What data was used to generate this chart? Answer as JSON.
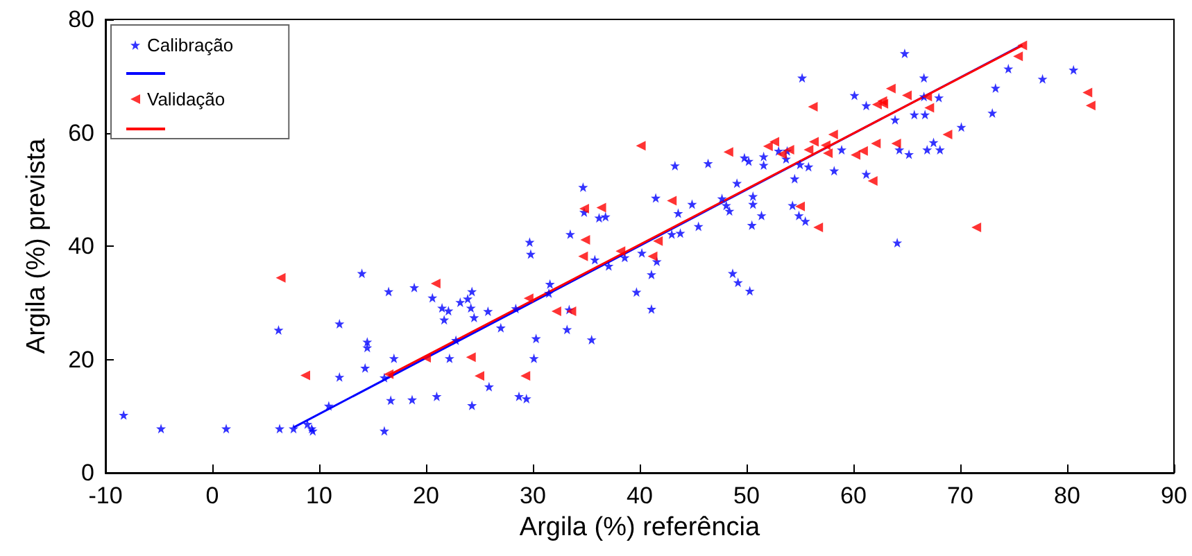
{
  "chart_data": {
    "type": "scatter",
    "xlabel": "Argila (%) referência",
    "ylabel": "Argila (%) prevista",
    "xlim": [
      -10,
      90
    ],
    "xticks": [
      -10,
      0,
      10,
      20,
      30,
      40,
      50,
      60,
      70,
      80,
      90
    ],
    "ylim": [
      0,
      80
    ],
    "yticks": [
      0,
      20,
      40,
      60,
      80
    ],
    "grid": false,
    "legend": "top left",
    "series": [
      {
        "name": "Calibração",
        "marker": "star",
        "color": "#0000ff",
        "x": [
          -8.3,
          -4.8,
          1.3,
          6.3,
          7.6,
          8.9,
          9.3,
          9.4,
          10.9,
          6.2,
          11.9,
          14.0,
          16.5,
          18.9,
          14.5,
          14.5,
          11.9,
          14.3,
          17.0,
          16.1,
          16.7,
          18.7,
          21.0,
          16.1,
          20.6,
          21.5,
          22.1,
          21.7,
          22.2,
          23.2,
          23.9,
          24.3,
          24.2,
          24.5,
          25.8,
          27.0,
          22.8,
          24.3,
          25.9,
          28.7,
          29.4,
          28.4,
          30.3,
          30.1,
          29.7,
          29.8,
          31.6,
          31.5,
          33.5,
          33.2,
          33.4,
          35.5,
          34.7,
          34.8,
          36.2,
          36.8,
          35.8,
          37.1,
          38.6,
          40.2,
          41.6,
          41.1,
          39.7,
          41.1,
          41.5,
          43.6,
          43.3,
          46.4,
          44.9,
          45.5,
          43.0,
          43.8,
          47.7,
          48.1,
          48.4,
          49.1,
          49.8,
          50.2,
          50.6,
          50.6,
          51.4,
          50.5,
          48.7,
          49.2,
          50.3,
          51.6,
          51.6,
          54.5,
          54.3,
          54.9,
          55.5,
          53.0,
          53.8,
          53.7,
          55.0,
          55.8,
          55.2,
          58.2,
          58.9,
          61.2,
          60.1,
          61.2,
          63.9,
          64.3,
          65.2,
          64.1,
          64.8,
          65.7,
          66.7,
          66.6,
          66.6,
          68.0,
          66.9,
          67.5,
          68.1,
          70.1,
          73.0,
          73.3,
          74.5,
          77.7,
          80.6
        ],
        "values": [
          10.2,
          7.8,
          7.8,
          7.8,
          7.8,
          8.6,
          7.8,
          7.4,
          11.8,
          25.2,
          26.3,
          35.2,
          32.0,
          32.7,
          23.1,
          22.1,
          16.9,
          18.5,
          20.2,
          7.4,
          12.8,
          12.9,
          13.5,
          16.8,
          30.9,
          29.1,
          28.6,
          27.0,
          20.2,
          30.1,
          30.7,
          32.0,
          29.1,
          27.4,
          28.5,
          25.6,
          23.4,
          11.9,
          15.2,
          13.5,
          13.1,
          29.0,
          23.7,
          20.2,
          40.7,
          38.6,
          33.3,
          31.7,
          42.1,
          25.3,
          28.8,
          23.5,
          50.4,
          46.0,
          45.0,
          45.2,
          37.6,
          36.5,
          38.0,
          38.8,
          37.3,
          35.0,
          31.9,
          28.9,
          48.5,
          45.8,
          54.2,
          54.6,
          47.4,
          43.5,
          42.1,
          42.3,
          48.4,
          47.2,
          46.2,
          51.1,
          55.6,
          55.0,
          48.8,
          47.4,
          45.4,
          43.7,
          35.2,
          33.6,
          32.1,
          54.3,
          55.8,
          51.9,
          47.2,
          45.4,
          44.4,
          56.8,
          56.8,
          55.4,
          54.4,
          54.0,
          69.7,
          53.3,
          57.0,
          52.7,
          66.6,
          64.8,
          62.3,
          57.0,
          56.2,
          40.6,
          74.0,
          63.2,
          63.2,
          69.7,
          66.4,
          66.2,
          57.0,
          58.3,
          57.0,
          61.0,
          63.5,
          67.9,
          71.3,
          69.5,
          71.1
        ]
      },
      {
        "type": "line",
        "marker": "none",
        "line_style": "solid",
        "color": "#0000ff",
        "x": [
          7.6,
          75.8
        ],
        "values": [
          8.0,
          75.5
        ]
      },
      {
        "name": "Validação",
        "marker": "triangle",
        "color": "#ff0000",
        "x": [
          6.4,
          8.7,
          16.5,
          20.0,
          20.9,
          24.2,
          25.0,
          29.3,
          29.6,
          32.2,
          33.6,
          34.7,
          34.9,
          34.8,
          36.4,
          38.2,
          41.2,
          41.7,
          43.0,
          40.1,
          48.3,
          52.0,
          52.6,
          53.3,
          54.0,
          55.0,
          56.7,
          55.8,
          56.3,
          56.2,
          57.6,
          57.4,
          58.1,
          60.2,
          60.9,
          61.8,
          62.1,
          64.0,
          62.2,
          62.7,
          62.8,
          63.5,
          65.0,
          66.9,
          67.1,
          68.8,
          71.5,
          75.4,
          75.8,
          81.9,
          82.2
        ],
        "values": [
          34.4,
          17.2,
          17.4,
          20.3,
          33.4,
          20.4,
          17.1,
          17.1,
          30.8,
          28.5,
          28.5,
          38.2,
          41.1,
          46.6,
          46.8,
          39.1,
          38.2,
          40.9,
          48.0,
          57.7,
          56.6,
          57.6,
          58.4,
          56.2,
          57.0,
          47.0,
          43.3,
          57.0,
          58.4,
          64.6,
          56.4,
          57.8,
          59.7,
          56.1,
          56.8,
          51.5,
          58.1,
          58.1,
          65.0,
          65.6,
          65.1,
          67.8,
          66.6,
          66.4,
          64.4,
          59.7,
          43.3,
          73.5,
          75.4,
          67.1,
          64.8
        ]
      },
      {
        "type": "line",
        "marker": "none",
        "line_style": "solid",
        "color": "#ff0000",
        "x": [
          16.5,
          75.8
        ],
        "values": [
          17.2,
          75.4
        ]
      }
    ]
  }
}
